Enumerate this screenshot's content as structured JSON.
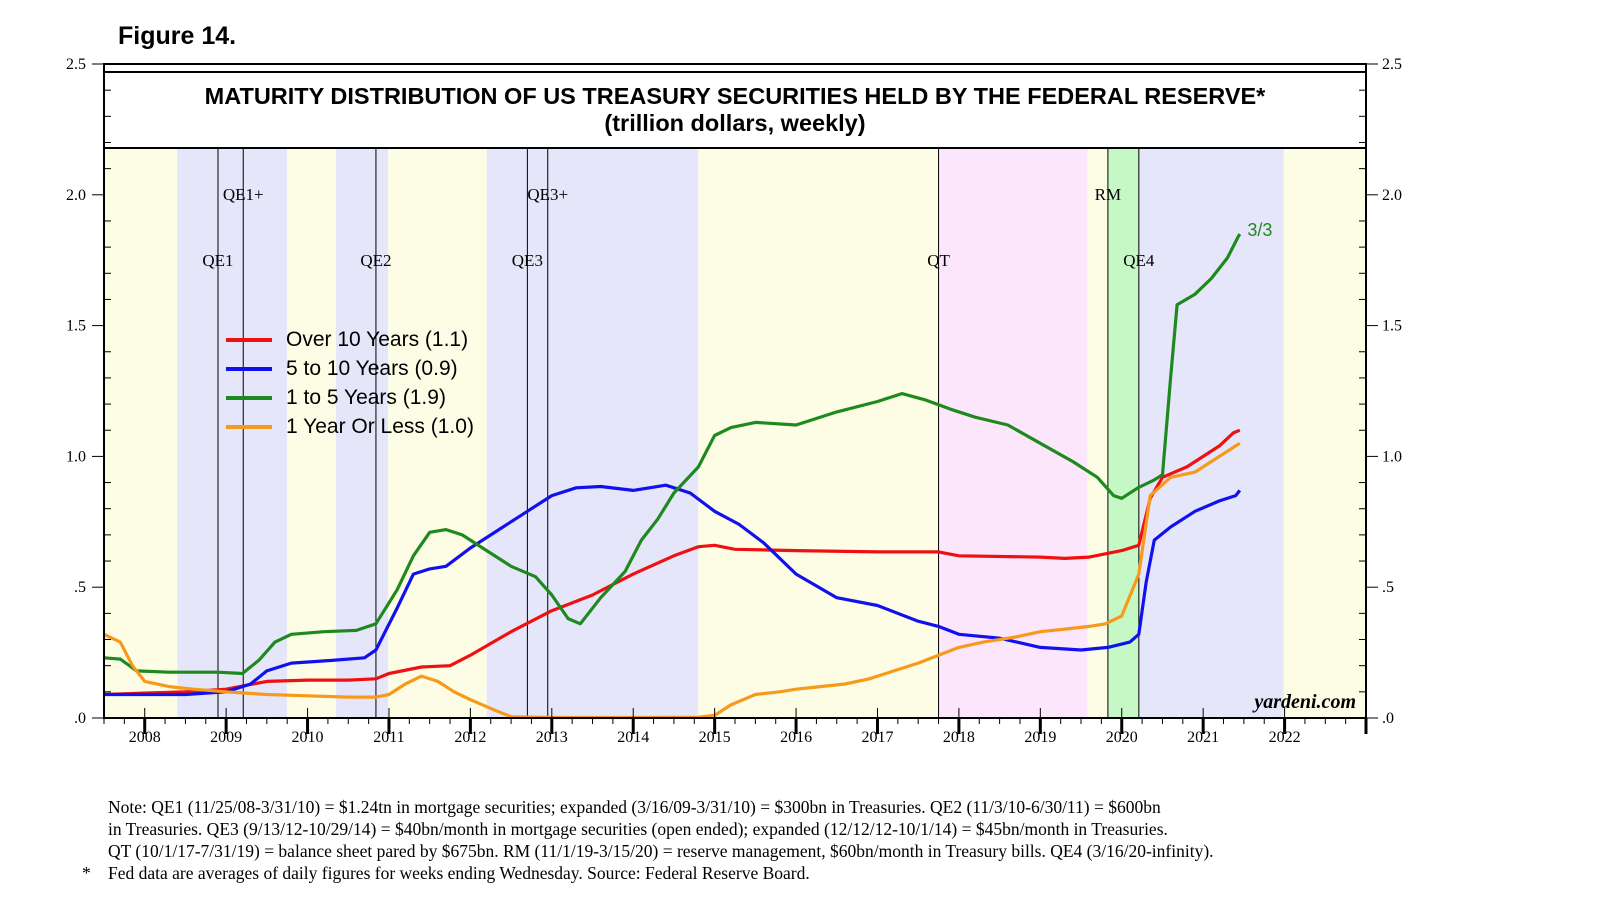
{
  "figure_label": "Figure 14.",
  "chart_data": {
    "type": "line",
    "title": "MATURITY DISTRIBUTION OF US TREASURY SECURITIES HELD BY THE FEDERAL RESERVE*",
    "subtitle": "(trillion dollars, weekly)",
    "xlabel": "",
    "ylabel": "",
    "xlim": [
      2007.5,
      2023.0
    ],
    "ylim": [
      0,
      2.5
    ],
    "x_tick_labels": [
      "2008",
      "2009",
      "2010",
      "2011",
      "2012",
      "2013",
      "2014",
      "2015",
      "2016",
      "2017",
      "2018",
      "2019",
      "2020",
      "2021",
      "2022"
    ],
    "y_tick_labels": [
      {
        "value": 0,
        "label": ".0"
      },
      {
        "value": 0.5,
        "label": ".5"
      },
      {
        "value": 1.0,
        "label": "1.0"
      },
      {
        "value": 1.5,
        "label": "1.5"
      },
      {
        "value": 2.0,
        "label": "2.0"
      },
      {
        "value": 2.5,
        "label": "2.5"
      }
    ],
    "shaded_regions": [
      {
        "start": 2007.5,
        "end": 2008.4,
        "color": "#fdfde6"
      },
      {
        "start": 2008.4,
        "end": 2009.75,
        "color": "#e6e6fb"
      },
      {
        "start": 2009.75,
        "end": 2010.35,
        "color": "#fdfde6"
      },
      {
        "start": 2010.35,
        "end": 2010.99,
        "color": "#e6e6fb"
      },
      {
        "start": 2010.99,
        "end": 2012.2,
        "color": "#fdfde6"
      },
      {
        "start": 2012.2,
        "end": 2014.8,
        "color": "#e6e6fb"
      },
      {
        "start": 2014.8,
        "end": 2017.75,
        "color": "#fdfde6"
      },
      {
        "start": 2017.75,
        "end": 2019.58,
        "color": "#fce6fc"
      },
      {
        "start": 2019.58,
        "end": 2019.83,
        "color": "#fdfde6"
      },
      {
        "start": 2019.83,
        "end": 2020.21,
        "color": "#c6f8c6"
      },
      {
        "start": 2020.21,
        "end": 2021.99,
        "color": "#e6e6fb"
      },
      {
        "start": 2021.99,
        "end": 2023.0,
        "color": "#fdfde6"
      }
    ],
    "event_lines": [
      {
        "label": "QE1",
        "x": 2008.9,
        "row": 2
      },
      {
        "label": "QE1+",
        "x": 2009.21,
        "row": 1
      },
      {
        "label": "QE2",
        "x": 2010.84,
        "row": 2
      },
      {
        "label": "QE3",
        "x": 2012.7,
        "row": 2
      },
      {
        "label": "QE3+",
        "x": 2012.95,
        "row": 1
      },
      {
        "label": "QT",
        "x": 2017.75,
        "row": 2
      },
      {
        "label": "RM",
        "x": 2019.83,
        "row": 1
      },
      {
        "label": "QE4",
        "x": 2020.21,
        "row": 2
      }
    ],
    "legend": [
      {
        "label": "Over 10 Years (1.1)",
        "color": "#ee1111"
      },
      {
        "label": "5 to 10 Years (0.9)",
        "color": "#1111ee"
      },
      {
        "label": "1 to 5 Years (1.9)",
        "color": "#1e8a1e"
      },
      {
        "label": "1 Year Or Less (1.0)",
        "color": "#f79a1c"
      }
    ],
    "series": [
      {
        "name": "Over 10 Years",
        "color": "#ee1111",
        "points": [
          [
            2007.5,
            0.09
          ],
          [
            2008.0,
            0.095
          ],
          [
            2008.5,
            0.1
          ],
          [
            2009.0,
            0.11
          ],
          [
            2009.5,
            0.14
          ],
          [
            2010.0,
            0.145
          ],
          [
            2010.5,
            0.145
          ],
          [
            2010.84,
            0.15
          ],
          [
            2011.0,
            0.17
          ],
          [
            2011.4,
            0.195
          ],
          [
            2011.75,
            0.2
          ],
          [
            2012.0,
            0.24
          ],
          [
            2012.5,
            0.33
          ],
          [
            2013.0,
            0.41
          ],
          [
            2013.5,
            0.47
          ],
          [
            2014.0,
            0.55
          ],
          [
            2014.5,
            0.62
          ],
          [
            2014.8,
            0.655
          ],
          [
            2015.0,
            0.66
          ],
          [
            2015.25,
            0.645
          ],
          [
            2016.0,
            0.64
          ],
          [
            2017.0,
            0.635
          ],
          [
            2017.75,
            0.635
          ],
          [
            2018.0,
            0.62
          ],
          [
            2019.0,
            0.615
          ],
          [
            2019.3,
            0.61
          ],
          [
            2019.6,
            0.615
          ],
          [
            2020.0,
            0.64
          ],
          [
            2020.21,
            0.66
          ],
          [
            2020.35,
            0.84
          ],
          [
            2020.5,
            0.92
          ],
          [
            2020.8,
            0.96
          ],
          [
            2021.0,
            1.0
          ],
          [
            2021.2,
            1.04
          ],
          [
            2021.37,
            1.09
          ],
          [
            2021.45,
            1.1
          ]
        ]
      },
      {
        "name": "5 to 10 Years",
        "color": "#1111ee",
        "points": [
          [
            2007.5,
            0.09
          ],
          [
            2008.0,
            0.09
          ],
          [
            2008.5,
            0.09
          ],
          [
            2009.0,
            0.1
          ],
          [
            2009.3,
            0.13
          ],
          [
            2009.5,
            0.18
          ],
          [
            2009.8,
            0.21
          ],
          [
            2010.3,
            0.22
          ],
          [
            2010.7,
            0.23
          ],
          [
            2010.84,
            0.26
          ],
          [
            2011.1,
            0.42
          ],
          [
            2011.3,
            0.55
          ],
          [
            2011.5,
            0.57
          ],
          [
            2011.7,
            0.58
          ],
          [
            2012.0,
            0.65
          ],
          [
            2012.4,
            0.73
          ],
          [
            2012.7,
            0.79
          ],
          [
            2013.0,
            0.85
          ],
          [
            2013.3,
            0.88
          ],
          [
            2013.6,
            0.885
          ],
          [
            2014.0,
            0.87
          ],
          [
            2014.4,
            0.89
          ],
          [
            2014.7,
            0.86
          ],
          [
            2015.0,
            0.79
          ],
          [
            2015.3,
            0.74
          ],
          [
            2015.6,
            0.67
          ],
          [
            2016.0,
            0.55
          ],
          [
            2016.5,
            0.46
          ],
          [
            2017.0,
            0.43
          ],
          [
            2017.5,
            0.37
          ],
          [
            2017.75,
            0.35
          ],
          [
            2018.0,
            0.32
          ],
          [
            2018.5,
            0.305
          ],
          [
            2019.0,
            0.27
          ],
          [
            2019.5,
            0.26
          ],
          [
            2019.83,
            0.27
          ],
          [
            2020.1,
            0.29
          ],
          [
            2020.21,
            0.32
          ],
          [
            2020.3,
            0.52
          ],
          [
            2020.4,
            0.68
          ],
          [
            2020.6,
            0.73
          ],
          [
            2020.9,
            0.79
          ],
          [
            2021.2,
            0.83
          ],
          [
            2021.4,
            0.85
          ],
          [
            2021.45,
            0.87
          ]
        ]
      },
      {
        "name": "1 to 5 Years",
        "color": "#1e8a1e",
        "points": [
          [
            2007.5,
            0.23
          ],
          [
            2007.7,
            0.225
          ],
          [
            2007.9,
            0.18
          ],
          [
            2008.3,
            0.175
          ],
          [
            2008.9,
            0.175
          ],
          [
            2009.2,
            0.17
          ],
          [
            2009.4,
            0.22
          ],
          [
            2009.6,
            0.29
          ],
          [
            2009.8,
            0.32
          ],
          [
            2010.2,
            0.33
          ],
          [
            2010.6,
            0.335
          ],
          [
            2010.84,
            0.36
          ],
          [
            2011.1,
            0.49
          ],
          [
            2011.3,
            0.62
          ],
          [
            2011.5,
            0.71
          ],
          [
            2011.7,
            0.72
          ],
          [
            2011.9,
            0.7
          ],
          [
            2012.2,
            0.64
          ],
          [
            2012.5,
            0.58
          ],
          [
            2012.8,
            0.54
          ],
          [
            2013.0,
            0.47
          ],
          [
            2013.2,
            0.38
          ],
          [
            2013.35,
            0.36
          ],
          [
            2013.6,
            0.46
          ],
          [
            2013.9,
            0.56
          ],
          [
            2014.1,
            0.68
          ],
          [
            2014.3,
            0.76
          ],
          [
            2014.5,
            0.86
          ],
          [
            2014.8,
            0.96
          ],
          [
            2015.0,
            1.08
          ],
          [
            2015.2,
            1.11
          ],
          [
            2015.5,
            1.13
          ],
          [
            2016.0,
            1.12
          ],
          [
            2016.5,
            1.17
          ],
          [
            2017.0,
            1.21
          ],
          [
            2017.3,
            1.24
          ],
          [
            2017.6,
            1.215
          ],
          [
            2017.9,
            1.18
          ],
          [
            2018.2,
            1.15
          ],
          [
            2018.6,
            1.12
          ],
          [
            2019.0,
            1.05
          ],
          [
            2019.4,
            0.98
          ],
          [
            2019.7,
            0.92
          ],
          [
            2019.9,
            0.85
          ],
          [
            2020.0,
            0.84
          ],
          [
            2020.2,
            0.88
          ],
          [
            2020.4,
            0.91
          ],
          [
            2020.5,
            0.93
          ],
          [
            2020.6,
            1.3
          ],
          [
            2020.68,
            1.58
          ],
          [
            2020.9,
            1.62
          ],
          [
            2021.1,
            1.68
          ],
          [
            2021.3,
            1.76
          ],
          [
            2021.43,
            1.84
          ],
          [
            2021.45,
            1.85
          ]
        ]
      },
      {
        "name": "1 Year Or Less",
        "color": "#f79a1c",
        "points": [
          [
            2007.5,
            0.32
          ],
          [
            2007.7,
            0.29
          ],
          [
            2007.85,
            0.2
          ],
          [
            2008.0,
            0.14
          ],
          [
            2008.3,
            0.12
          ],
          [
            2008.6,
            0.11
          ],
          [
            2009.0,
            0.1
          ],
          [
            2009.5,
            0.09
          ],
          [
            2010.0,
            0.085
          ],
          [
            2010.5,
            0.08
          ],
          [
            2010.84,
            0.08
          ],
          [
            2011.0,
            0.09
          ],
          [
            2011.2,
            0.13
          ],
          [
            2011.4,
            0.16
          ],
          [
            2011.6,
            0.14
          ],
          [
            2011.8,
            0.1
          ],
          [
            2012.0,
            0.07
          ],
          [
            2012.3,
            0.03
          ],
          [
            2012.5,
            0.005
          ],
          [
            2013.0,
            0.002
          ],
          [
            2014.0,
            0.002
          ],
          [
            2014.8,
            0.003
          ],
          [
            2015.0,
            0.01
          ],
          [
            2015.2,
            0.05
          ],
          [
            2015.5,
            0.09
          ],
          [
            2015.8,
            0.1
          ],
          [
            2016.0,
            0.11
          ],
          [
            2016.3,
            0.12
          ],
          [
            2016.6,
            0.13
          ],
          [
            2016.9,
            0.15
          ],
          [
            2017.2,
            0.18
          ],
          [
            2017.5,
            0.21
          ],
          [
            2017.75,
            0.24
          ],
          [
            2018.0,
            0.27
          ],
          [
            2018.3,
            0.29
          ],
          [
            2018.7,
            0.31
          ],
          [
            2019.0,
            0.33
          ],
          [
            2019.3,
            0.34
          ],
          [
            2019.6,
            0.35
          ],
          [
            2019.8,
            0.36
          ],
          [
            2020.0,
            0.39
          ],
          [
            2020.21,
            0.55
          ],
          [
            2020.35,
            0.85
          ],
          [
            2020.6,
            0.92
          ],
          [
            2020.9,
            0.94
          ],
          [
            2021.2,
            1.0
          ],
          [
            2021.4,
            1.04
          ],
          [
            2021.45,
            1.05
          ]
        ]
      }
    ],
    "end_annotation": {
      "label": "3/3",
      "x": 2021.47,
      "y": 1.85,
      "color": "#1e8a1e"
    },
    "watermark": "yardeni.com"
  },
  "notes": [
    "Note: QE1 (11/25/08-3/31/10) = $1.24tn in mortgage securities; expanded (3/16/09-3/31/10) = $300bn in Treasuries. QE2 (11/3/10-6/30/11) = $600bn",
    "in Treasuries. QE3 (9/13/12-10/29/14) = $40bn/month in mortgage securities (open ended); expanded (12/12/12-10/1/14) = $45bn/month in Treasuries.",
    "QT (10/1/17-7/31/19) = balance sheet pared by $675bn. RM (11/1/19-3/15/20) = reserve management, $60bn/month in Treasury bills. QE4 (3/16/20-infinity).",
    "Fed data are averages of daily figures for weeks ending Wednesday. Source: Federal Reserve Board."
  ],
  "footnote_marker": "*"
}
